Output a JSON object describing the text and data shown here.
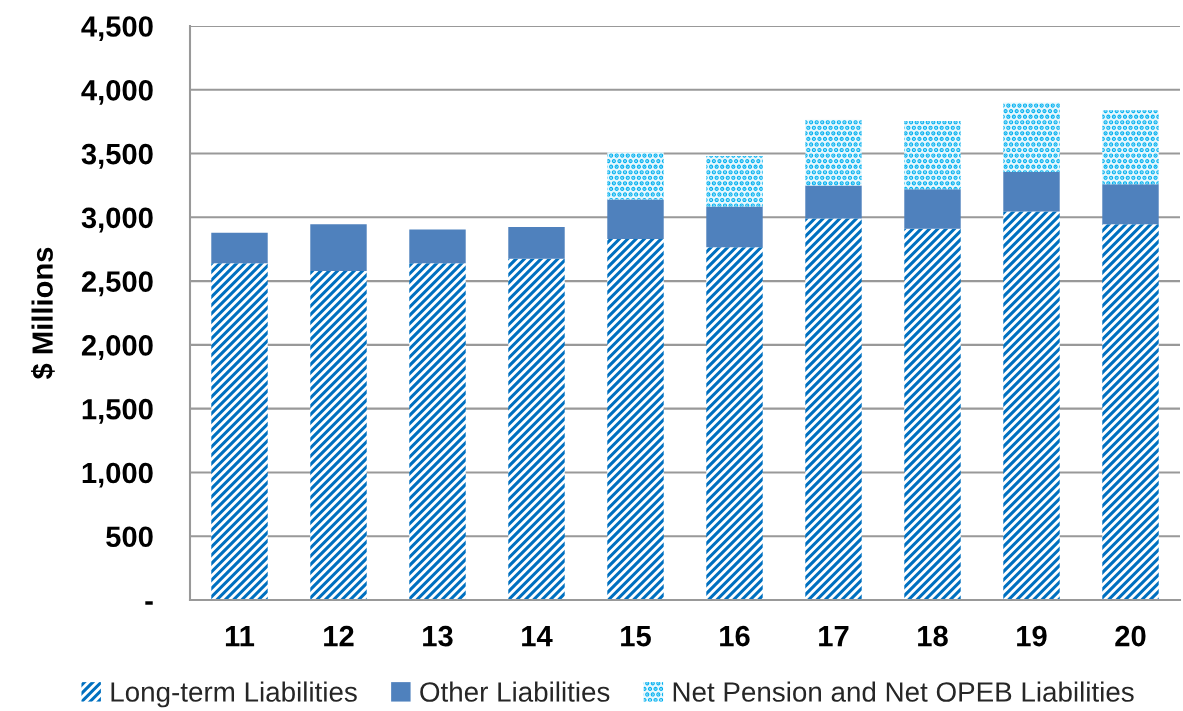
{
  "chart_data": {
    "type": "bar",
    "stacked": true,
    "ylabel": "$ Millions",
    "categories": [
      "11",
      "12",
      "13",
      "14",
      "15",
      "16",
      "17",
      "18",
      "19",
      "20"
    ],
    "series": [
      {
        "name": "Long-term Liabilities",
        "color": "#0070c0",
        "values": [
          2640,
          2580,
          2640,
          2675,
          2830,
          2765,
          2990,
          2910,
          3045,
          2945
        ]
      },
      {
        "name": "Other Liabilities",
        "color": "#4f81bd",
        "values": [
          240,
          365,
          265,
          250,
          310,
          320,
          260,
          310,
          310,
          315
        ]
      },
      {
        "name": "Net Pension and Net OPEB Liabilities",
        "color": "#00b0f0",
        "values": [
          null,
          null,
          null,
          null,
          370,
          395,
          515,
          535,
          545,
          580
        ]
      }
    ],
    "ylim": [
      0,
      4500
    ],
    "yticks": [
      {
        "value": 0,
        "label": "-"
      },
      {
        "value": 500,
        "label": "500"
      },
      {
        "value": 1000,
        "label": "1,000"
      },
      {
        "value": 1500,
        "label": "1,500"
      },
      {
        "value": 2000,
        "label": "2,000"
      },
      {
        "value": 2500,
        "label": "2,500"
      },
      {
        "value": 3000,
        "label": "3,000"
      },
      {
        "value": 3500,
        "label": "3,500"
      },
      {
        "value": 4000,
        "label": "4,000"
      },
      {
        "value": 4500,
        "label": "4,500"
      }
    ],
    "grid": "y",
    "legend": "bottom"
  }
}
